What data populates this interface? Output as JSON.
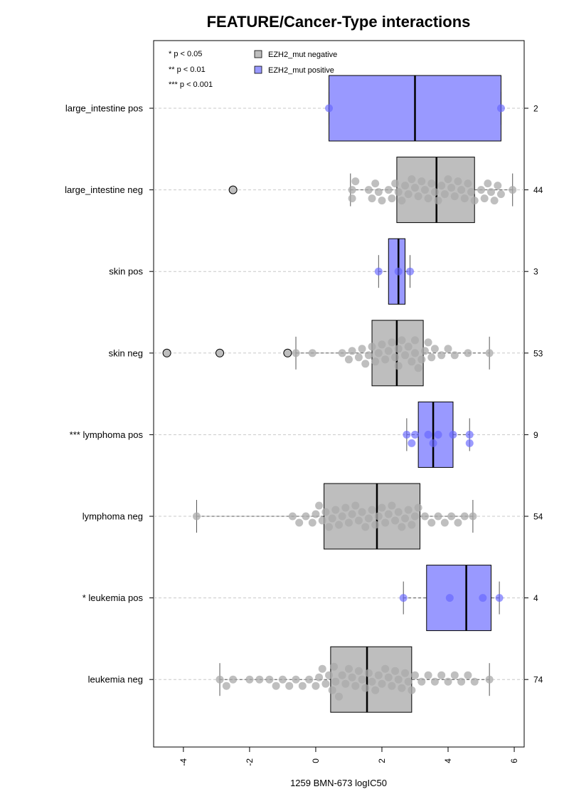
{
  "chart_data": {
    "type": "boxplot",
    "orientation": "horizontal",
    "title": "FEATURE/Cancer-Type interactions",
    "xlabel": "1259 BMN-673 logIC50",
    "xlim": [
      -4.9,
      6.3
    ],
    "xticks": [
      -4,
      -2,
      0,
      2,
      4,
      6
    ],
    "xtick_labels": [
      "-4",
      "-2",
      "0",
      "2",
      "4",
      "6"
    ],
    "significance_legend": [
      "* p < 0.05",
      "** p < 0.01",
      "*** p < 0.001"
    ],
    "legend": [
      {
        "label": "EZH2_mut negative",
        "color": "#bebebe"
      },
      {
        "label": "EZH2_mut positive",
        "color": "#9999ff"
      }
    ],
    "colors": {
      "negative_box": "#bebebe",
      "positive_box": "#9999ff",
      "negative_point": "#a9a9a9",
      "positive_point": "#6666ff"
    },
    "groups": [
      {
        "label": "large_intestine pos",
        "n": "2",
        "status": "positive",
        "q1": 0.4,
        "median": 3.0,
        "q3": 5.6,
        "whisker_low": 0.4,
        "whisker_high": 5.6,
        "outliers": [],
        "points": [
          0.4,
          5.6
        ]
      },
      {
        "label": "large_intestine neg",
        "n": "44",
        "status": "negative",
        "q1": 2.45,
        "median": 3.65,
        "q3": 4.8,
        "whisker_low": 1.05,
        "whisker_high": 5.95,
        "outliers": [
          -2.5
        ],
        "points": [
          1.1,
          1.1,
          1.2,
          1.6,
          1.7,
          1.8,
          1.9,
          2.0,
          2.2,
          2.3,
          2.4,
          2.5,
          2.6,
          2.7,
          2.8,
          2.9,
          3.0,
          3.1,
          3.2,
          3.3,
          3.4,
          3.5,
          3.6,
          3.7,
          3.8,
          3.9,
          4.0,
          4.1,
          4.2,
          4.3,
          4.4,
          4.5,
          4.6,
          4.7,
          4.8,
          5.0,
          5.1,
          5.2,
          5.3,
          5.4,
          5.5,
          5.6,
          5.95
        ]
      },
      {
        "label": "skin pos",
        "n": "3",
        "status": "positive",
        "q1": 2.2,
        "median": 2.5,
        "q3": 2.7,
        "whisker_low": 1.9,
        "whisker_high": 2.85,
        "outliers": [],
        "points": [
          1.9,
          2.5,
          2.85
        ]
      },
      {
        "label": "skin neg",
        "n": "53",
        "status": "negative",
        "q1": 1.7,
        "median": 2.45,
        "q3": 3.25,
        "whisker_low": -0.6,
        "whisker_high": 5.25,
        "outliers": [
          -4.5,
          -2.9,
          -0.85
        ],
        "points": [
          -0.6,
          -0.1,
          0.8,
          1.0,
          1.1,
          1.3,
          1.4,
          1.5,
          1.6,
          1.7,
          1.8,
          1.9,
          2.0,
          2.1,
          2.2,
          2.3,
          2.4,
          2.5,
          2.5,
          2.6,
          2.7,
          2.8,
          2.9,
          3.0,
          3.0,
          3.1,
          3.2,
          3.3,
          3.4,
          3.5,
          3.6,
          3.8,
          4.0,
          4.2,
          4.6,
          5.25
        ]
      },
      {
        "label": "*** lymphoma pos",
        "n": "9",
        "status": "positive",
        "q1": 3.1,
        "median": 3.55,
        "q3": 4.15,
        "whisker_low": 2.75,
        "whisker_high": 4.65,
        "outliers": [],
        "points": [
          2.75,
          2.9,
          3.0,
          3.4,
          3.55,
          3.7,
          4.15,
          4.65,
          4.65
        ]
      },
      {
        "label": "lymphoma neg",
        "n": "54",
        "status": "negative",
        "q1": 0.25,
        "median": 1.85,
        "q3": 3.15,
        "whisker_low": -3.6,
        "whisker_high": 4.75,
        "outliers": [],
        "points": [
          -3.6,
          -0.7,
          -0.5,
          -0.3,
          -0.1,
          0.0,
          0.1,
          0.2,
          0.3,
          0.4,
          0.5,
          0.6,
          0.7,
          0.8,
          0.9,
          1.0,
          1.1,
          1.2,
          1.3,
          1.4,
          1.5,
          1.6,
          1.7,
          1.8,
          1.9,
          2.0,
          2.1,
          2.2,
          2.3,
          2.4,
          2.5,
          2.6,
          2.7,
          2.8,
          2.9,
          3.0,
          3.1,
          3.3,
          3.5,
          3.7,
          3.9,
          4.1,
          4.3,
          4.5,
          4.75
        ]
      },
      {
        "label": "* leukemia pos",
        "n": "4",
        "status": "positive",
        "q1": 3.35,
        "median": 4.55,
        "q3": 5.3,
        "whisker_low": 2.65,
        "whisker_high": 5.55,
        "outliers": [],
        "points": [
          2.65,
          4.05,
          5.05,
          5.55
        ]
      },
      {
        "label": "leukemia neg",
        "n": "74",
        "status": "negative",
        "q1": 0.45,
        "median": 1.55,
        "q3": 2.9,
        "whisker_low": -2.9,
        "whisker_high": 5.25,
        "outliers": [],
        "points": [
          -2.9,
          -2.7,
          -2.5,
          -2.0,
          -1.7,
          -1.4,
          -1.2,
          -1.0,
          -0.8,
          -0.6,
          -0.4,
          -0.2,
          0.0,
          0.1,
          0.2,
          0.3,
          0.4,
          0.5,
          0.55,
          0.6,
          0.7,
          0.8,
          0.9,
          1.0,
          1.1,
          1.2,
          1.3,
          1.4,
          1.5,
          1.6,
          1.7,
          1.8,
          1.9,
          2.0,
          2.1,
          2.2,
          2.3,
          2.4,
          2.5,
          2.6,
          2.7,
          2.8,
          2.9,
          3.0,
          3.2,
          3.4,
          3.6,
          3.8,
          4.0,
          4.2,
          4.4,
          4.6,
          4.8,
          5.25
        ]
      }
    ]
  }
}
